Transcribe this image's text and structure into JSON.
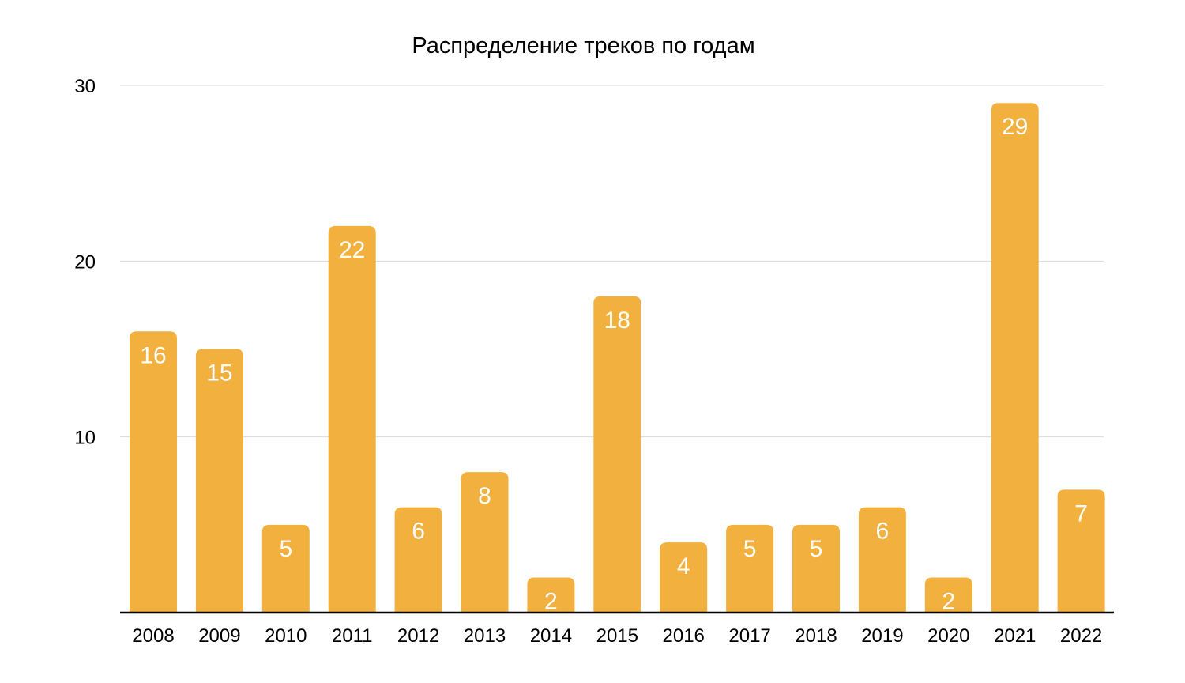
{
  "chart_data": {
    "type": "bar",
    "title": "Распределение треков по годам",
    "xlabel": "",
    "ylabel": "",
    "categories": [
      "2008",
      "2009",
      "2010",
      "2011",
      "2012",
      "2013",
      "2014",
      "2015",
      "2016",
      "2017",
      "2018",
      "2019",
      "2020",
      "2021",
      "2022"
    ],
    "values": [
      16,
      15,
      5,
      22,
      6,
      8,
      2,
      18,
      4,
      5,
      5,
      6,
      2,
      29,
      7
    ],
    "ylim": [
      0,
      30
    ],
    "yticks": [
      10,
      20,
      30
    ],
    "grid": true,
    "data_labels": true,
    "bar_color": "#f2b13e",
    "label_color": "#ffffff"
  }
}
